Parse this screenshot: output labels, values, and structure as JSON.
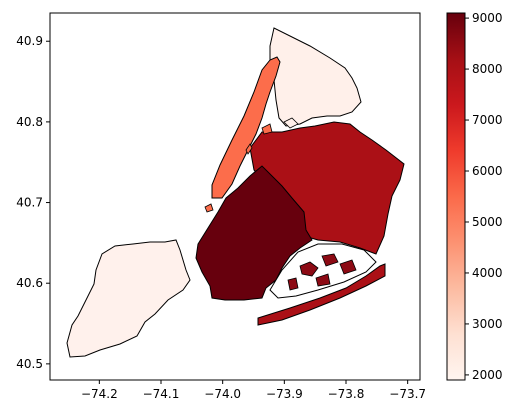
{
  "map": {
    "x_axis": {
      "range": [
        -74.28,
        -73.68
      ],
      "ticks": [
        -74.2,
        -74.1,
        -74.0,
        -73.9,
        -73.8,
        -73.7
      ],
      "tick_labels": [
        "−74.2",
        "−74.1",
        "−74.0",
        "−73.9",
        "−73.8",
        "−73.7"
      ]
    },
    "y_axis": {
      "range": [
        40.48,
        40.935
      ],
      "ticks": [
        40.5,
        40.6,
        40.7,
        40.8,
        40.9
      ],
      "tick_labels": [
        "40.5",
        "40.6",
        "40.7",
        "40.8",
        "40.9"
      ]
    },
    "colormap": "Reds",
    "colorbar": {
      "range": [
        1900,
        9100
      ],
      "ticks": [
        2000,
        3000,
        4000,
        5000,
        6000,
        7000,
        8000,
        9000
      ],
      "tick_labels": [
        "2000",
        "3000",
        "4000",
        "5000",
        "6000",
        "7000",
        "8000",
        "9000"
      ]
    },
    "regions": [
      {
        "value": 1950,
        "color": "#fff1ec"
      },
      {
        "value": 2000,
        "color": "#fff0ea"
      },
      {
        "value": 5300,
        "color": "#fc6d4b"
      },
      {
        "value": 8200,
        "color": "#ab1016"
      },
      {
        "value": 8700,
        "color": "#8c0a14"
      },
      {
        "value": 9050,
        "color": "#67000d"
      }
    ]
  }
}
